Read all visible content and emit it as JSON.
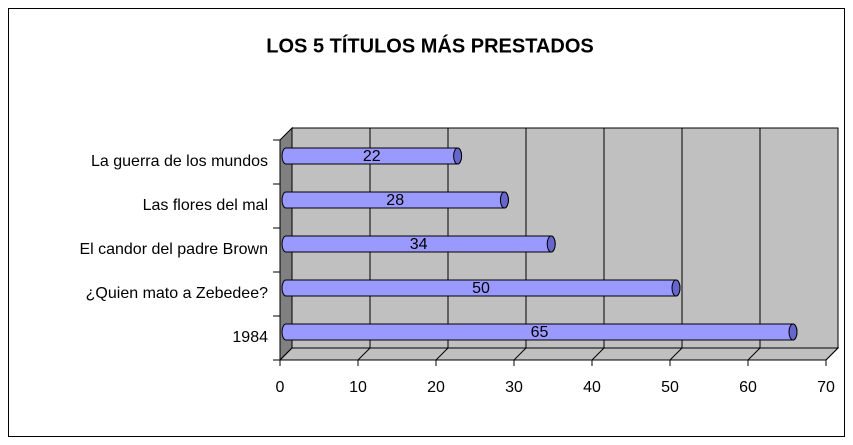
{
  "chart_data": {
    "type": "bar3d",
    "title": "LOS 5 TÍTULOS MÁS PRESTADOS",
    "categories": [
      "La guerra de los mundos",
      "Las flores del mal",
      "El candor del padre Brown",
      "¿Quien mato a Zebedee?",
      "1984"
    ],
    "values": [
      22,
      28,
      34,
      50,
      65
    ],
    "color": "#9999ff",
    "xlim": [
      0,
      70
    ],
    "xticks": [
      0,
      10,
      20,
      30,
      40,
      50,
      60,
      70
    ],
    "grid": true
  }
}
